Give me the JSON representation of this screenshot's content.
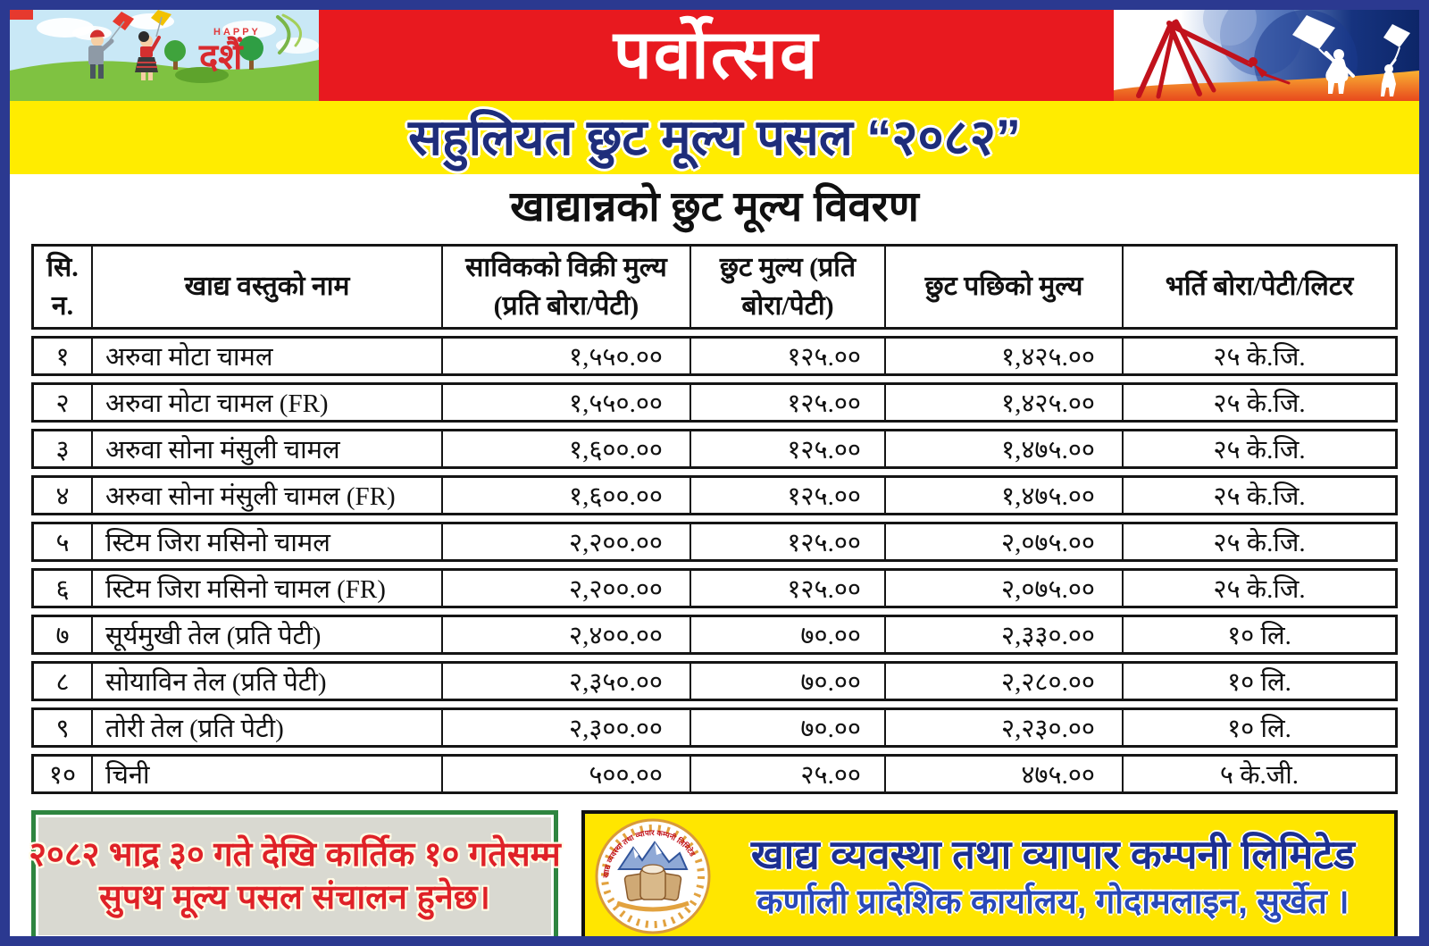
{
  "poster": {
    "title": "पर्वोत्सव",
    "subtitle": "सहुलियत छुट मूल्य पसल “२०८२”",
    "section_title": "खाद्यान्नको छुट मूल्य विवरण"
  },
  "decor": {
    "dashain_greeting_small": "HAPPY",
    "dashain_greeting_big": "दशैं"
  },
  "table": {
    "headers": [
      [
        "सि.",
        "न."
      ],
      [
        "खाद्य वस्तुको नाम"
      ],
      [
        "साविकको विक्री मुल्य",
        "(प्रति बोरा/पेटी)"
      ],
      [
        "छुट मुल्य (प्रति",
        "बोरा/पेटी)"
      ],
      [
        "छुट पछिको मुल्य"
      ],
      [
        "भर्ति बोरा/पेटी/लिटर"
      ]
    ],
    "rows": [
      [
        "१",
        "अरुवा मोटा चामल",
        "१,५५०.००",
        "१२५.००",
        "१,४२५.००",
        "२५ के.जि."
      ],
      [
        "२",
        "अरुवा मोटा चामल (FR)",
        "१,५५०.००",
        "१२५.००",
        "१,४२५.००",
        "२५ के.जि."
      ],
      [
        "३",
        "अरुवा सोना मंसुली चामल",
        "१,६००.००",
        "१२५.००",
        "१,४७५.००",
        "२५ के.जि."
      ],
      [
        "४",
        "अरुवा सोना मंसुली चामल (FR)",
        "१,६००.००",
        "१२५.००",
        "१,४७५.००",
        "२५ के.जि."
      ],
      [
        "५",
        "स्टिम जिरा मसिनो चामल",
        "२,२००.००",
        "१२५.००",
        "२,०७५.००",
        "२५ के.जि."
      ],
      [
        "६",
        "स्टिम जिरा मसिनो चामल (FR)",
        "२,२००.००",
        "१२५.००",
        "२,०७५.००",
        "२५ के.जि."
      ],
      [
        "७",
        "सूर्यमुखी तेल (प्रति पेटी)",
        "२,४००.००",
        "७०.००",
        "२,३३०.००",
        "१० लि."
      ],
      [
        "८",
        "सोयाविन तेल (प्रति पेटी)",
        "२,३५०.००",
        "७०.००",
        "२,२८०.००",
        "१० लि."
      ],
      [
        "९",
        "तोरी तेल (प्रति पेटी)",
        "२,३००.००",
        "७०.००",
        "२,२३०.००",
        "१० लि."
      ],
      [
        "१०",
        "चिनी",
        "५००.००",
        "२५.००",
        "४७५.००",
        "५ के.जी."
      ]
    ]
  },
  "notice": {
    "line1": "२०८२ भाद्र ३० गते देखि कार्तिक १० गतेसम्म",
    "line2": "सुपथ मूल्य पसल संचालन हुनेछ।"
  },
  "footer": {
    "org_name": "खाद्य व्यवस्था तथा व्यापार कम्पनी लिमिटेड",
    "org_address": "कर्णाली प्रादेशिक कार्यालय, गोदामलाइन, सुर्खेत ।"
  },
  "colors": {
    "banner_red": "#e8191f",
    "band_yellow": "#ffec00",
    "navy_border": "#2b3990",
    "subtitle_blue": "#1e2d7b",
    "notice_red": "#df2127",
    "notice_border_green": "#2e8540",
    "footer_yellow": "#ffe600",
    "footer_blue": "#1c2f92"
  }
}
